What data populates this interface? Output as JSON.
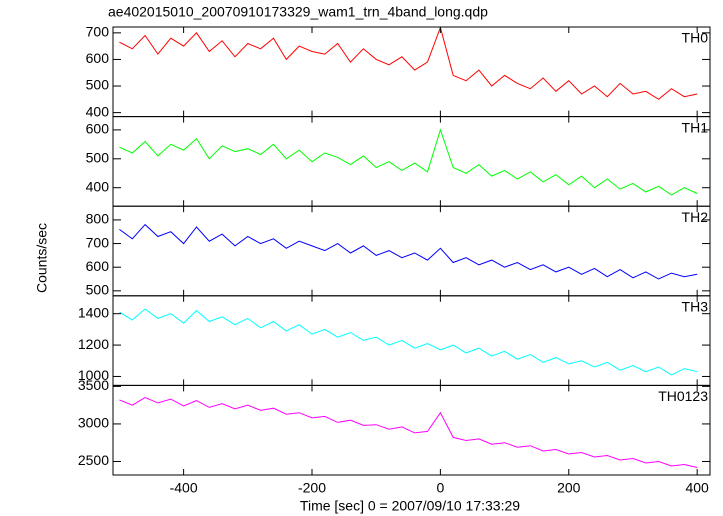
{
  "chart_data": [
    {
      "type": "line",
      "title": "ae402015010_20070910173329_wam1_trn_4band_long.qdp",
      "x": [
        -500,
        -480,
        -460,
        -440,
        -420,
        -400,
        -380,
        -360,
        -340,
        -320,
        -300,
        -280,
        -260,
        -240,
        -220,
        -200,
        -180,
        -160,
        -140,
        -120,
        -100,
        -80,
        -60,
        -40,
        -20,
        0,
        20,
        40,
        60,
        80,
        100,
        120,
        140,
        160,
        180,
        200,
        220,
        240,
        260,
        280,
        300,
        320,
        340,
        360,
        380,
        400
      ],
      "series": [
        {
          "name": "TH0",
          "color": "#ff0000",
          "values": [
            665,
            640,
            690,
            620,
            680,
            650,
            700,
            630,
            670,
            610,
            660,
            640,
            680,
            600,
            650,
            630,
            620,
            660,
            590,
            640,
            600,
            580,
            610,
            560,
            590,
            720,
            540,
            520,
            560,
            500,
            540,
            510,
            490,
            530,
            480,
            520,
            470,
            500,
            460,
            510,
            470,
            480,
            450,
            490,
            460,
            470
          ]
        }
      ],
      "xlim": [
        -510,
        420
      ],
      "ylim": [
        385,
        722
      ],
      "yticks": [
        400,
        500,
        600,
        700
      ]
    },
    {
      "type": "line",
      "x": [
        -500,
        -480,
        -460,
        -440,
        -420,
        -400,
        -380,
        -360,
        -340,
        -320,
        -300,
        -280,
        -260,
        -240,
        -220,
        -200,
        -180,
        -160,
        -140,
        -120,
        -100,
        -80,
        -60,
        -40,
        -20,
        0,
        20,
        40,
        60,
        80,
        100,
        120,
        140,
        160,
        180,
        200,
        220,
        240,
        260,
        280,
        300,
        320,
        340,
        360,
        380,
        400
      ],
      "series": [
        {
          "name": "TH1",
          "color": "#00ff00",
          "values": [
            540,
            520,
            560,
            510,
            550,
            530,
            570,
            500,
            545,
            525,
            535,
            515,
            550,
            500,
            530,
            490,
            520,
            505,
            480,
            510,
            470,
            490,
            460,
            485,
            455,
            600,
            470,
            450,
            480,
            440,
            460,
            430,
            455,
            420,
            445,
            410,
            440,
            400,
            430,
            395,
            415,
            385,
            405,
            375,
            400,
            380
          ]
        }
      ],
      "xlim": [
        -510,
        420
      ],
      "ylim": [
        336,
        646
      ],
      "yticks": [
        400,
        500,
        600
      ]
    },
    {
      "type": "line",
      "ylabel": "Counts/sec",
      "x": [
        -500,
        -480,
        -460,
        -440,
        -420,
        -400,
        -380,
        -360,
        -340,
        -320,
        -300,
        -280,
        -260,
        -240,
        -220,
        -200,
        -180,
        -160,
        -140,
        -120,
        -100,
        -80,
        -60,
        -40,
        -20,
        0,
        20,
        40,
        60,
        80,
        100,
        120,
        140,
        160,
        180,
        200,
        220,
        240,
        260,
        280,
        300,
        320,
        340,
        360,
        380,
        400
      ],
      "series": [
        {
          "name": "TH2",
          "color": "#0000ff",
          "values": [
            760,
            720,
            780,
            730,
            750,
            700,
            770,
            710,
            740,
            690,
            730,
            700,
            720,
            680,
            710,
            690,
            670,
            700,
            660,
            690,
            650,
            670,
            640,
            660,
            630,
            680,
            620,
            640,
            610,
            630,
            600,
            620,
            590,
            610,
            580,
            600,
            570,
            595,
            560,
            590,
            555,
            580,
            550,
            575,
            560,
            570
          ]
        }
      ],
      "xlim": [
        -510,
        420
      ],
      "ylim": [
        479,
        858
      ],
      "yticks": [
        500,
        600,
        700,
        800
      ]
    },
    {
      "type": "line",
      "x": [
        -500,
        -480,
        -460,
        -440,
        -420,
        -400,
        -380,
        -360,
        -340,
        -320,
        -300,
        -280,
        -260,
        -240,
        -220,
        -200,
        -180,
        -160,
        -140,
        -120,
        -100,
        -80,
        -60,
        -40,
        -20,
        0,
        20,
        40,
        60,
        80,
        100,
        120,
        140,
        160,
        180,
        200,
        220,
        240,
        260,
        280,
        300,
        320,
        340,
        360,
        380,
        400
      ],
      "series": [
        {
          "name": "TH3",
          "color": "#00ffff",
          "values": [
            1410,
            1360,
            1430,
            1370,
            1400,
            1340,
            1420,
            1350,
            1380,
            1330,
            1370,
            1310,
            1350,
            1290,
            1330,
            1270,
            1300,
            1250,
            1280,
            1230,
            1250,
            1200,
            1230,
            1180,
            1210,
            1170,
            1200,
            1150,
            1180,
            1130,
            1160,
            1110,
            1140,
            1090,
            1120,
            1080,
            1100,
            1060,
            1090,
            1040,
            1070,
            1030,
            1060,
            1010,
            1050,
            1030
          ]
        }
      ],
      "xlim": [
        -510,
        420
      ],
      "ylim": [
        943,
        1514
      ],
      "yticks": [
        1000,
        1200,
        1400
      ]
    },
    {
      "type": "line",
      "xlabel": "Time [sec] 0 = 2007/09/10 17:33:29",
      "x": [
        -500,
        -480,
        -460,
        -440,
        -420,
        -400,
        -380,
        -360,
        -340,
        -320,
        -300,
        -280,
        -260,
        -240,
        -220,
        -200,
        -180,
        -160,
        -140,
        -120,
        -100,
        -80,
        -60,
        -40,
        -20,
        0,
        20,
        40,
        60,
        80,
        100,
        120,
        140,
        160,
        180,
        200,
        220,
        240,
        260,
        280,
        300,
        320,
        340,
        360,
        380,
        400
      ],
      "series": [
        {
          "name": "TH0123",
          "color": "#ff00ff",
          "values": [
            3320,
            3250,
            3350,
            3280,
            3330,
            3240,
            3310,
            3220,
            3270,
            3200,
            3250,
            3180,
            3210,
            3130,
            3150,
            3080,
            3100,
            3020,
            3050,
            2980,
            2990,
            2930,
            2960,
            2880,
            2900,
            3150,
            2820,
            2780,
            2800,
            2730,
            2750,
            2690,
            2710,
            2640,
            2660,
            2600,
            2620,
            2560,
            2580,
            2520,
            2540,
            2480,
            2500,
            2440,
            2460,
            2420
          ]
        }
      ],
      "xlim": [
        -510,
        420
      ],
      "ylim": [
        2320,
        3513
      ],
      "yticks": [
        2500,
        3000,
        3500
      ],
      "xticks": [
        -400,
        -200,
        0,
        200,
        400
      ]
    }
  ]
}
